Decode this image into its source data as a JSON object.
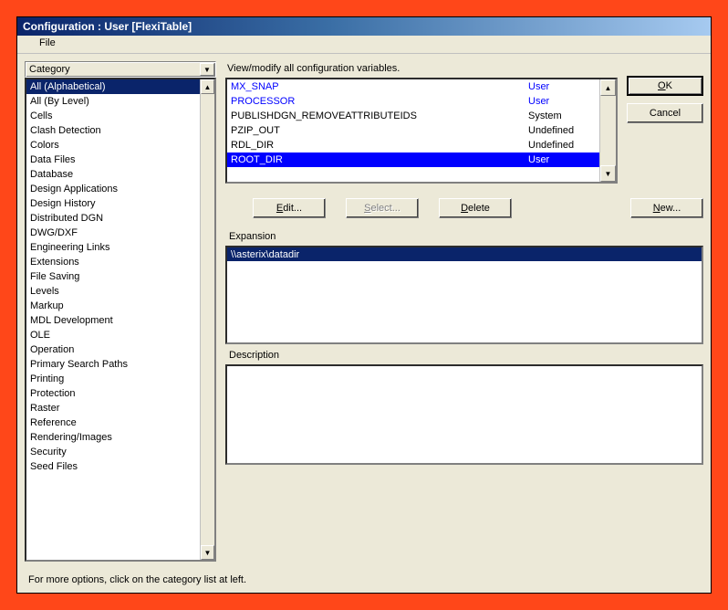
{
  "window": {
    "title": "Configuration : User [FlexiTable]"
  },
  "menu": {
    "file": "File"
  },
  "category": {
    "header": "Category",
    "items": [
      "All (Alphabetical)",
      "All (By Level)",
      "Cells",
      "Clash Detection",
      "Colors",
      "Data Files",
      "Database",
      "Design Applications",
      "Design History",
      "Distributed DGN",
      "DWG/DXF",
      "Engineering Links",
      "Extensions",
      "File Saving",
      "Levels",
      "Markup",
      "MDL Development",
      "OLE",
      "Operation",
      "Primary Search Paths",
      "Printing",
      "Protection",
      "Raster",
      "Reference",
      "Rendering/Images",
      "Security",
      "Seed Files"
    ],
    "selected": 0
  },
  "vars": {
    "prompt": "View/modify all configuration variables.",
    "rows": [
      {
        "name": "MX_SNAP",
        "scope": "User",
        "style": "blue"
      },
      {
        "name": "PROCESSOR",
        "scope": "User",
        "style": "blue"
      },
      {
        "name": "PUBLISHDGN_REMOVEATTRIBUTEIDS",
        "scope": "System",
        "style": ""
      },
      {
        "name": "PZIP_OUT",
        "scope": "Undefined",
        "style": ""
      },
      {
        "name": "RDL_DIR",
        "scope": "Undefined",
        "style": ""
      },
      {
        "name": "ROOT_DIR",
        "scope": "User",
        "style": "sel"
      }
    ]
  },
  "buttons": {
    "ok": "OK",
    "cancel": "Cancel",
    "edit": "Edit...",
    "select": "Select...",
    "delete": "Delete",
    "newb": "New..."
  },
  "expansion": {
    "label": "Expansion",
    "value": "\\\\asterix\\datadir"
  },
  "description": {
    "label": "Description"
  },
  "footer": {
    "text": "For more options, click on the category list at left."
  }
}
